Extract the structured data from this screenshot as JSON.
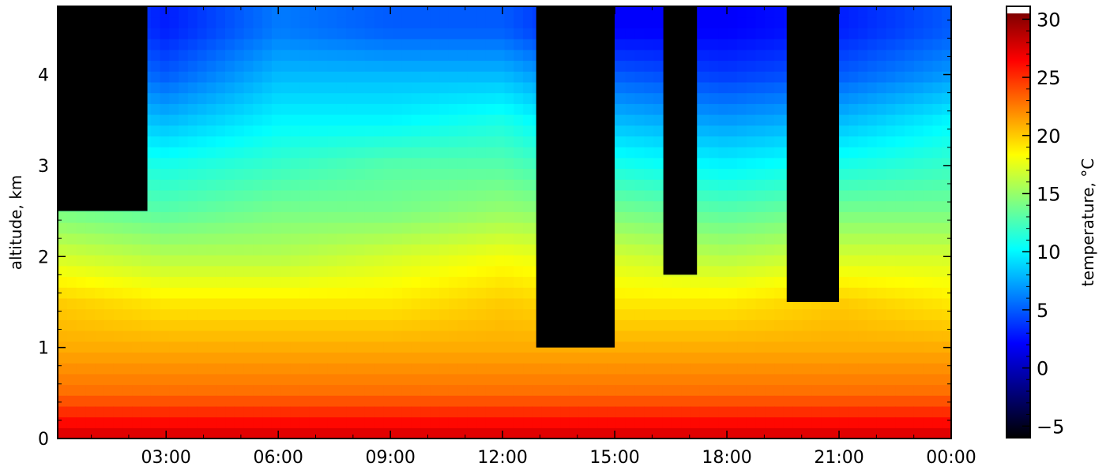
{
  "chart_data": {
    "type": "heatmap",
    "title": "",
    "xlabel": "",
    "ylabel": "altitude, km",
    "x_ticks": [
      "03:00",
      "06:00",
      "09:00",
      "12:00",
      "15:00",
      "18:00",
      "21:00",
      "00:00"
    ],
    "x_tick_hours": [
      3,
      6,
      9,
      12,
      15,
      18,
      21,
      24
    ],
    "x_range_hours": [
      0.1,
      24
    ],
    "y_ticks": [
      "0",
      "1",
      "2",
      "3",
      "4"
    ],
    "y_tick_values": [
      0,
      1,
      2,
      3,
      4
    ],
    "ylim": [
      0,
      4.75
    ],
    "colorbar": {
      "label": "temperature, °C",
      "ticks": [
        "−5",
        "0",
        "5",
        "10",
        "15",
        "20",
        "25",
        "30"
      ],
      "tick_values": [
        -5,
        0,
        5,
        10,
        15,
        20,
        25,
        30
      ],
      "range": [
        -6,
        30.5
      ],
      "colormap": [
        "#000000",
        "#000080",
        "#0000ff",
        "#0080ff",
        "#00ffff",
        "#80ff80",
        "#ffff00",
        "#ff8000",
        "#ff0000",
        "#800000"
      ],
      "over_color": "#ffffff"
    },
    "profile_hours": [
      0,
      3,
      6,
      9,
      12,
      15,
      18,
      21,
      24
    ],
    "profile_altitudes_km": [
      0,
      0.5,
      1,
      1.5,
      2,
      2.5,
      3,
      3.5,
      4,
      4.5
    ],
    "temperature_profiles_c": [
      [
        28,
        23,
        21,
        20,
        17,
        14,
        12,
        10,
        8,
        6
      ],
      [
        28,
        23,
        21,
        19,
        16,
        13,
        11,
        8,
        5,
        3
      ],
      [
        28,
        23,
        21,
        19,
        16,
        14,
        12,
        10,
        8,
        6
      ],
      [
        28,
        23,
        21,
        19,
        17,
        14,
        13,
        10,
        8,
        5
      ],
      [
        28,
        23,
        21,
        20,
        18,
        15,
        13,
        11,
        8,
        5
      ],
      [
        28,
        23,
        21,
        19,
        17,
        14,
        11,
        8,
        5,
        2
      ],
      [
        28,
        23,
        21,
        19,
        16,
        13,
        10,
        7,
        4,
        2
      ],
      [
        28,
        23,
        21,
        20,
        17,
        14,
        11,
        8,
        5,
        3
      ],
      [
        28,
        23,
        21,
        19,
        17,
        14,
        12,
        10,
        7,
        5
      ]
    ],
    "no_data_regions": [
      {
        "hours": [
          0.1,
          2.5
        ],
        "km": [
          2.5,
          4.75
        ]
      },
      {
        "hours": [
          12.9,
          15.0
        ],
        "km": [
          1.0,
          4.75
        ]
      },
      {
        "hours": [
          16.3,
          17.2
        ],
        "km": [
          1.8,
          4.75
        ]
      },
      {
        "hours": [
          19.6,
          21.0
        ],
        "km": [
          1.5,
          4.75
        ]
      }
    ]
  }
}
